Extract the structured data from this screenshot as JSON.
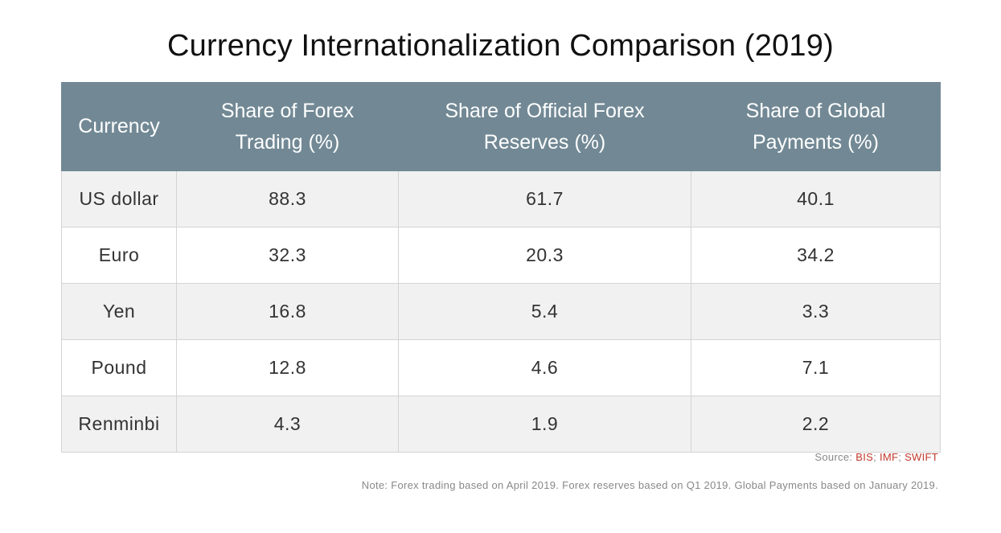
{
  "chart_data": {
    "type": "table",
    "title": "Currency Internationalization Comparison (2019)",
    "columns": [
      "Currency",
      "Share of Forex Trading (%)",
      "Share of Official Forex Reserves (%)",
      "Share of Global Payments (%)"
    ],
    "rows": [
      [
        "US dollar",
        "88.3",
        "61.7",
        "40.1"
      ],
      [
        "Euro",
        "32.3",
        "20.3",
        "34.2"
      ],
      [
        "Yen",
        "16.8",
        "5.4",
        "3.3"
      ],
      [
        "Pound",
        "12.8",
        "4.6",
        "7.1"
      ],
      [
        "Renminbi",
        "4.3",
        "1.9",
        "2.2"
      ]
    ],
    "source_label": "Source:",
    "sources": [
      "BIS",
      "IMF",
      "SWIFT"
    ],
    "note": "Note: Forex trading based on April 2019. Forex reserves based on Q1 2019. Global Payments based on January 2019."
  },
  "colors": {
    "header_bg": "#728995",
    "header_text": "#ffffff",
    "row_alt_bg": "#f1f1f1",
    "link": "#c0392b"
  }
}
